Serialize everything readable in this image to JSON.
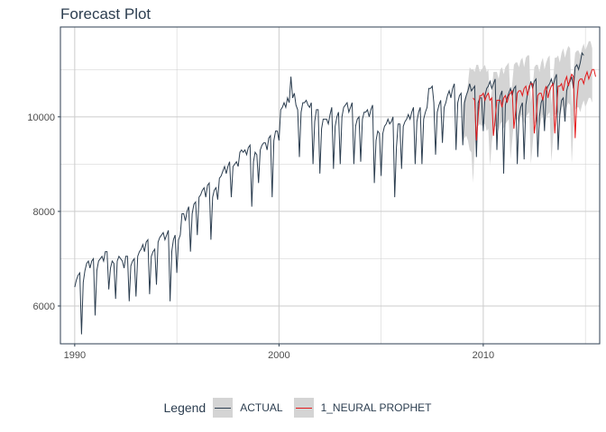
{
  "chart_data": {
    "type": "line",
    "title": "Forecast Plot",
    "xlabel": "",
    "ylabel": "",
    "xlim": [
      1989.3,
      2015.7
    ],
    "ylim": [
      5200,
      11900
    ],
    "x_ticks": [
      1990,
      2000,
      2010
    ],
    "y_ticks": [
      6000,
      8000,
      10000
    ],
    "grid": true,
    "legend_position": "bottom",
    "legend_title": "Legend",
    "colors": {
      "actual": "#2c3e50",
      "forecast": "#e31a1c",
      "band": "#d4d4d4",
      "axis": "#2c3e50",
      "grid": "#cccccc"
    },
    "series": [
      {
        "name": "ACTUAL",
        "start": 1990.0,
        "step": 0.0833333,
        "yearly": [
          [
            6400,
            6550,
            6650,
            6700,
            5400,
            6500,
            6750,
            6900,
            6950,
            6800,
            6950,
            7000
          ],
          [
            5800,
            6750,
            6950,
            7000,
            7050,
            6950,
            7150,
            7150,
            6350,
            6800,
            6950,
            6900
          ],
          [
            6150,
            6950,
            7050,
            7000,
            6950,
            6800,
            7050,
            7050,
            6100,
            6850,
            6950,
            7000
          ],
          [
            6200,
            7050,
            7150,
            7200,
            7300,
            7150,
            7350,
            7400,
            6250,
            7050,
            7150,
            7200
          ],
          [
            6450,
            7350,
            7450,
            7500,
            7550,
            7400,
            7500,
            7600,
            6100,
            7150,
            7400,
            7500
          ],
          [
            6700,
            7400,
            7500,
            7950,
            7950,
            7800,
            8000,
            8100,
            7150,
            7950,
            8150,
            8200
          ],
          [
            7500,
            8300,
            8350,
            8450,
            8500,
            8300,
            8550,
            8600,
            7400,
            8300,
            8450,
            8500
          ],
          [
            8250,
            8700,
            8750,
            8850,
            8950,
            8800,
            8950,
            9050,
            8300,
            8950,
            9000,
            9050
          ],
          [
            8950,
            9250,
            9300,
            9250,
            9300,
            9200,
            9350,
            9400,
            8100,
            9050,
            9250,
            9200
          ],
          [
            8600,
            9300,
            9400,
            9450,
            9450,
            9300,
            9550,
            9600,
            8300,
            9500,
            9700,
            9700
          ],
          [
            9500,
            10150,
            10200,
            10300,
            10200,
            10400,
            10300,
            10850,
            10400,
            10500,
            10250,
            10150
          ],
          [
            9150,
            10100,
            10300,
            10300,
            10350,
            10250,
            10200,
            10300,
            9000,
            9900,
            10150,
            10150
          ],
          [
            8800,
            9750,
            9950,
            9950,
            9950,
            9850,
            10050,
            10200,
            8900,
            9800,
            10000,
            10100
          ],
          [
            9000,
            10000,
            10200,
            10250,
            10300,
            10100,
            10200,
            10300,
            9000,
            9800,
            9950,
            10000
          ],
          [
            9050,
            9950,
            10100,
            10100,
            10150,
            10000,
            10150,
            10250,
            8600,
            9500,
            9700,
            9650
          ],
          [
            8750,
            9650,
            9800,
            9850,
            9950,
            9850,
            9900,
            10000,
            8300,
            9350,
            9850,
            9850
          ],
          [
            8900,
            9800,
            9900,
            9950,
            10050,
            9950,
            10100,
            10200,
            9000,
            9900,
            10100,
            10200
          ],
          [
            9000,
            9950,
            10100,
            10200,
            10600,
            10600,
            10650,
            10300,
            9200,
            10100,
            10250,
            10350
          ],
          [
            9450,
            10200,
            10300,
            10450,
            10550,
            10400,
            10600,
            10700,
            9300,
            10300,
            10450,
            10500
          ],
          [
            9400,
            10300,
            10450,
            10550,
            10700,
            10550,
            10600,
            10650,
            9150,
            10300,
            10400,
            10400
          ],
          [
            9700,
            10450,
            10600,
            10650,
            10750,
            10600,
            10700,
            10800,
            9300,
            10250,
            10450,
            10550
          ],
          [
            8800,
            10250,
            10400,
            10500,
            10600,
            10450,
            10600,
            10650,
            9000,
            10000,
            10200,
            10300
          ],
          [
            9100,
            10250,
            10500,
            10600,
            10750,
            10600,
            10750,
            10800,
            9150,
            10000,
            10300,
            10400
          ],
          [
            9700,
            10550,
            10650,
            10700,
            10800,
            10650,
            10800,
            10900,
            9300,
            10050,
            10350,
            10400
          ],
          [
            9900,
            10550,
            10700,
            10750,
            10850,
            10600,
            11050,
            11100,
            11000,
            11150,
            11350,
            11300
          ]
        ]
      },
      {
        "name": "1_NEURAL PROPHET",
        "start": 2009.5,
        "step": 0.0833333,
        "values": [
          10400,
          10350,
          9500,
          10000,
          10450,
          10450,
          10500,
          10350,
          10450,
          10500,
          10350,
          10400,
          9600,
          9950,
          10350,
          10350,
          10350,
          10200,
          10400,
          10450,
          10300,
          10450,
          10500,
          10550,
          9750,
          10100,
          10500,
          10550,
          10550,
          10450,
          10600,
          10650,
          10450,
          10650,
          10700,
          10700,
          9650,
          9950,
          10450,
          10500,
          10500,
          10350,
          10550,
          10650,
          10400,
          10550,
          10650,
          10700,
          9650,
          10150,
          10650,
          10650,
          10700,
          10550,
          10750,
          10850,
          10650,
          10800,
          10900,
          10850,
          9550,
          10350,
          10750,
          10800,
          10800,
          10700,
          10850,
          10950,
          10800,
          10900,
          11000,
          11000,
          10850
        ]
      }
    ],
    "confidence_band": {
      "start": 2009.0,
      "step": 0.0833333,
      "lower": [
        9450,
        9550,
        9600,
        9500,
        9300,
        9250,
        8600,
        9400,
        9750,
        9800,
        9850,
        9800,
        9850,
        9850,
        9700,
        9750,
        8950,
        9450,
        9750,
        9800,
        9800,
        9700,
        9850,
        9900,
        9750,
        9850,
        9900,
        9950,
        9100,
        9500,
        9900,
        9950,
        9950,
        9850,
        10000,
        10050,
        9850,
        10000,
        10050,
        10100,
        9000,
        9400,
        9850,
        9900,
        9900,
        9750,
        9950,
        10050,
        9850,
        9950,
        10050,
        10100,
        9050,
        9550,
        10050,
        10050,
        10100,
        9950,
        10150,
        10250,
        10050,
        10200,
        10300,
        10250,
        9000,
        9750,
        10150,
        10200,
        10200,
        10100,
        10250,
        10350,
        10200,
        10300,
        10400,
        10400,
        10300
      ],
      "upper": [
        10250,
        10400,
        10450,
        10700,
        11050,
        11000,
        11000,
        10950,
        11100,
        11100,
        10950,
        11000,
        11050,
        11100,
        10950,
        11000,
        10250,
        10550,
        10950,
        10950,
        10950,
        10800,
        11000,
        11050,
        10900,
        11050,
        11100,
        11150,
        10350,
        10700,
        11100,
        11150,
        11150,
        11050,
        11200,
        11250,
        11050,
        11250,
        11300,
        11300,
        10300,
        10550,
        11050,
        11100,
        11100,
        10950,
        11150,
        11250,
        11000,
        11150,
        11250,
        11300,
        10250,
        10750,
        11250,
        11250,
        11300,
        11150,
        11350,
        11450,
        11250,
        11400,
        11500,
        11450,
        10150,
        10950,
        11350,
        11400,
        11400,
        11300,
        11450,
        11550,
        11400,
        11500,
        11600,
        11600,
        11450
      ]
    }
  }
}
